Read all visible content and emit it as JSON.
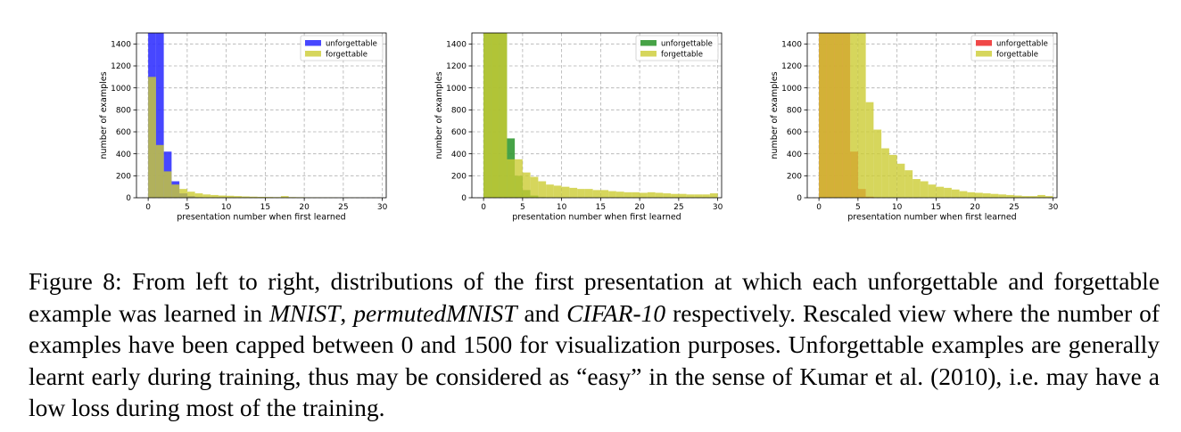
{
  "caption": {
    "p1": "Figure 8: From left to right, distributions of the first presentation at which each unforgettable and forgettable example was learned in ",
    "em1": "MNIST",
    "p2": ", ",
    "em2": "permutedMNIST",
    "p3": " and ",
    "em3": "CIFAR-10",
    "p4": " respectively. Rescaled view where the number of examples have been capped between 0 and 1500 for visualization purposes. Unforgettable examples are generally learnt early during training, thus may be considered as “easy” in the sense of Kumar et al. (2010), i.e. may have a low loss during most of the training."
  },
  "chart_data": [
    {
      "type": "bar",
      "xlabel": "presentation number when first learned",
      "ylabel": "number of examples",
      "xlim": [
        -1.5,
        30.5
      ],
      "ylim": [
        0,
        1500
      ],
      "xticks": [
        0,
        5,
        10,
        15,
        20,
        25,
        30
      ],
      "yticks": [
        0,
        200,
        400,
        600,
        800,
        1000,
        1200,
        1400
      ],
      "grid": true,
      "legend_position": "top-right",
      "bin_width": 1,
      "x": [
        0,
        1,
        2,
        3,
        4,
        5,
        6,
        7,
        8,
        9,
        10,
        11,
        12,
        13,
        14,
        15,
        16,
        17,
        18,
        19,
        20,
        21,
        22,
        23,
        24,
        25,
        26,
        27,
        28,
        29
      ],
      "series": [
        {
          "name": "unforgettable",
          "color": "#3333ff",
          "opacity": 0.9,
          "values": [
            1500,
            1500,
            420,
            150,
            40,
            15,
            5,
            0,
            0,
            0,
            0,
            0,
            0,
            0,
            0,
            0,
            0,
            0,
            0,
            0,
            0,
            0,
            0,
            0,
            0,
            0,
            0,
            0,
            0,
            0
          ]
        },
        {
          "name": "forgettable",
          "color": "#cccc33",
          "opacity": 0.8,
          "values": [
            1100,
            480,
            240,
            120,
            80,
            55,
            40,
            30,
            25,
            20,
            18,
            15,
            12,
            10,
            8,
            7,
            6,
            15,
            6,
            5,
            4,
            4,
            3,
            3,
            2,
            2,
            2,
            1,
            1,
            1
          ]
        }
      ]
    },
    {
      "type": "bar",
      "xlabel": "presentation number when first learned",
      "ylabel": "number of examples",
      "xlim": [
        -1.5,
        30.5
      ],
      "ylim": [
        0,
        1500
      ],
      "xticks": [
        0,
        5,
        10,
        15,
        20,
        25,
        30
      ],
      "yticks": [
        0,
        200,
        400,
        600,
        800,
        1000,
        1200,
        1400
      ],
      "grid": true,
      "legend_position": "top-right",
      "bin_width": 1,
      "x": [
        0,
        1,
        2,
        3,
        4,
        5,
        6,
        7,
        8,
        9,
        10,
        11,
        12,
        13,
        14,
        15,
        16,
        17,
        18,
        19,
        20,
        21,
        22,
        23,
        24,
        25,
        26,
        27,
        28,
        29
      ],
      "series": [
        {
          "name": "unforgettable",
          "color": "#339933",
          "opacity": 0.9,
          "values": [
            1500,
            1500,
            1500,
            540,
            200,
            70,
            20,
            5,
            0,
            0,
            0,
            0,
            0,
            0,
            0,
            0,
            0,
            0,
            0,
            0,
            0,
            0,
            0,
            0,
            0,
            0,
            0,
            0,
            0,
            0
          ]
        },
        {
          "name": "forgettable",
          "color": "#cccc33",
          "opacity": 0.8,
          "values": [
            1500,
            1500,
            1500,
            350,
            350,
            230,
            190,
            150,
            120,
            110,
            100,
            90,
            80,
            80,
            70,
            70,
            60,
            55,
            50,
            50,
            45,
            50,
            45,
            40,
            35,
            35,
            30,
            30,
            30,
            40
          ]
        }
      ]
    },
    {
      "type": "bar",
      "xlabel": "presentation number when first learned",
      "ylabel": "number of examples",
      "xlim": [
        -1.5,
        30.5
      ],
      "ylim": [
        0,
        1500
      ],
      "xticks": [
        0,
        5,
        10,
        15,
        20,
        25,
        30
      ],
      "yticks": [
        0,
        200,
        400,
        600,
        800,
        1000,
        1200,
        1400
      ],
      "grid": true,
      "legend_position": "top-right",
      "bin_width": 1,
      "x": [
        0,
        1,
        2,
        3,
        4,
        5,
        6,
        7,
        8,
        9,
        10,
        11,
        12,
        13,
        14,
        15,
        16,
        17,
        18,
        19,
        20,
        21,
        22,
        23,
        24,
        25,
        26,
        27,
        28,
        29
      ],
      "series": [
        {
          "name": "unforgettable",
          "color": "#ee3333",
          "opacity": 0.9,
          "values": [
            1500,
            1500,
            1500,
            1500,
            420,
            80,
            10,
            0,
            0,
            0,
            0,
            0,
            0,
            0,
            0,
            0,
            0,
            0,
            0,
            0,
            0,
            0,
            0,
            0,
            0,
            0,
            0,
            0,
            0,
            0
          ]
        },
        {
          "name": "forgettable",
          "color": "#cccc33",
          "opacity": 0.8,
          "values": [
            1500,
            1500,
            1500,
            1500,
            1500,
            1500,
            870,
            620,
            450,
            390,
            310,
            250,
            170,
            150,
            120,
            100,
            90,
            75,
            60,
            50,
            45,
            40,
            35,
            30,
            25,
            20,
            15,
            15,
            25,
            15
          ]
        }
      ]
    }
  ]
}
